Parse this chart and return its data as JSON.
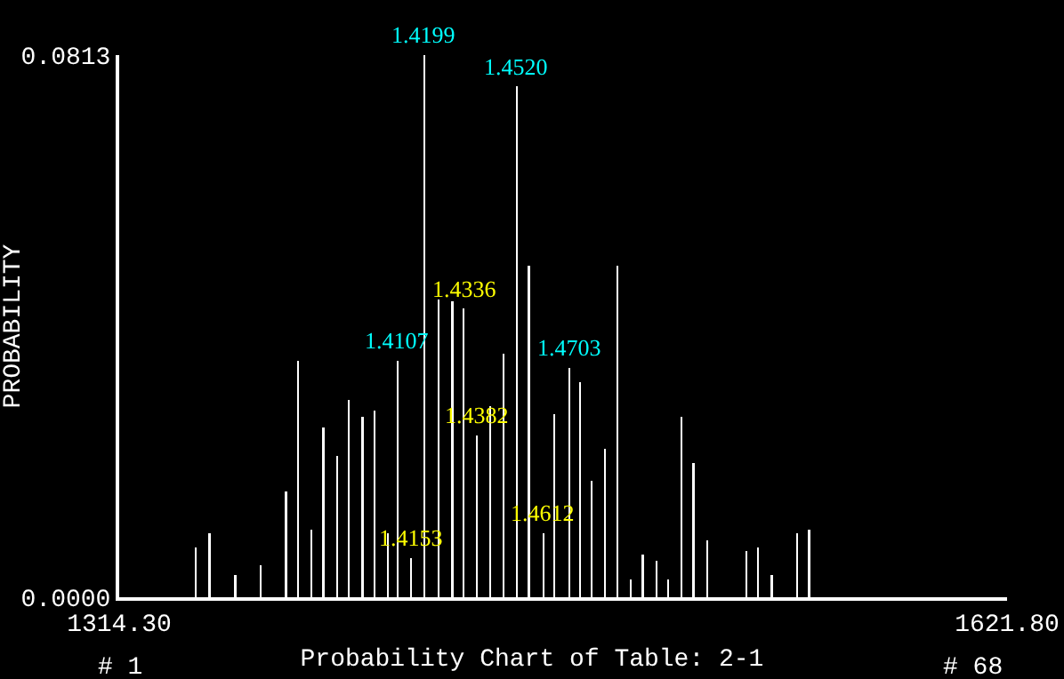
{
  "chart_data": {
    "type": "bar",
    "title": "Probability Chart of Table: 2-1",
    "ylabel": "PROBABILITY",
    "color": "#ffffff",
    "x": [
      1340.9,
      1345.6,
      1354.5,
      1363.3,
      1372.1,
      1376.2,
      1380.9,
      1385.0,
      1389.7,
      1393.9,
      1398.6,
      1402.7,
      1407.4,
      1410.7,
      1415.3,
      1419.9,
      1425.0,
      1429.7,
      1433.6,
      1438.2,
      1442.7,
      1447.4,
      1452.0,
      1456.2,
      1461.2,
      1465.0,
      1470.3,
      1473.8,
      1477.9,
      1482.6,
      1486.8,
      1491.5,
      1495.6,
      1500.3,
      1504.4,
      1509.1,
      1513.2,
      1517.9,
      1531.5,
      1535.6,
      1540.3,
      1549.1,
      1553.2
    ],
    "values": [
      0.0075,
      0.0096,
      0.0033,
      0.0048,
      0.0159,
      0.0354,
      0.0101,
      0.0254,
      0.0212,
      0.0296,
      0.027,
      0.028,
      0.0096,
      0.0354,
      0.0059,
      0.0813,
      0.0447,
      0.0444,
      0.0433,
      0.0243,
      0.0286,
      0.0365,
      0.0766,
      0.0497,
      0.0096,
      0.0275,
      0.0344,
      0.0323,
      0.0175,
      0.0222,
      0.0497,
      0.0027,
      0.0064,
      0.0054,
      0.0027,
      0.027,
      0.0201,
      0.0085,
      0.0069,
      0.0075,
      0.0033,
      0.0096,
      0.0101
    ],
    "xlim": [
      1314.3,
      1621.8
    ],
    "xticks": [
      {
        "value": 1314.3,
        "label": "1314.30"
      },
      {
        "value": 1621.8,
        "label": "1621.80"
      }
    ],
    "ylim": [
      0,
      0.0813
    ],
    "yticks": [
      {
        "value": 0,
        "label": "0.0000"
      },
      {
        "value": 0.0813,
        "label": "0.0813"
      }
    ],
    "annotations": [
      {
        "text": "1.4199",
        "x": 1419.9,
        "y": 0.0813
      },
      {
        "text": "1.4520",
        "x": 1452.0,
        "y": 0.0766
      },
      {
        "text": "1.4107",
        "x": 1410.7,
        "y": 0.0354
      },
      {
        "text": "1.4703",
        "x": 1470.3,
        "y": 0.0344
      },
      {
        "text": "1.4336",
        "x": 1433.6,
        "y": 0.0433
      },
      {
        "text": "1.4382",
        "x": 1438.2,
        "y": 0.0243
      },
      {
        "text": "1.4153",
        "x": 1415.3,
        "y": 0.0059
      },
      {
        "text": "1.4612",
        "x": 1461.2,
        "y": 0.0096
      },
      "# 1",
      "# 68"
    ]
  }
}
